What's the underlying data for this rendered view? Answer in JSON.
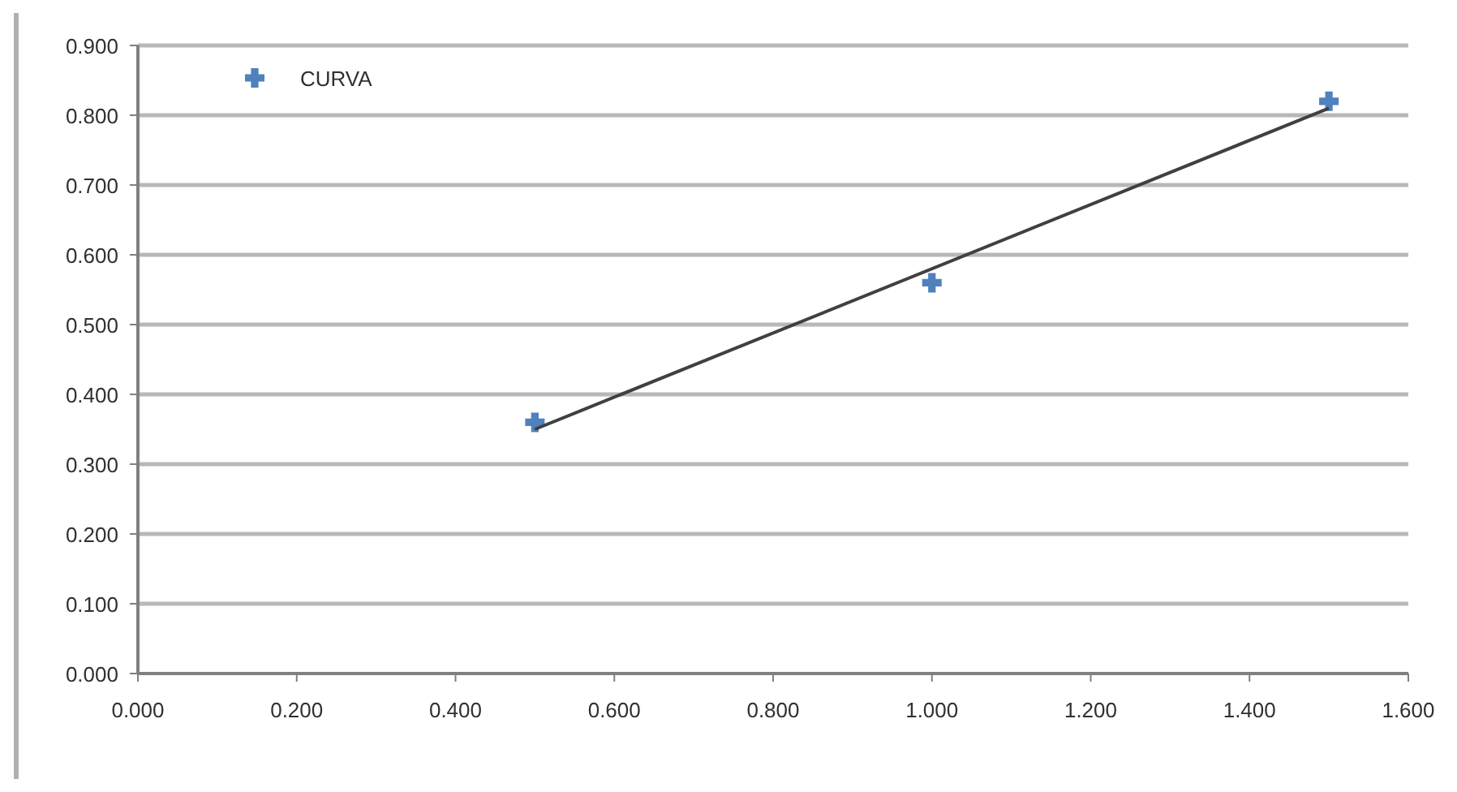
{
  "chart_data": {
    "type": "scatter",
    "series": [
      {
        "name": "CURVA",
        "color": "#4f81bd",
        "marker": "cross",
        "x": [
          0.5,
          1.0,
          1.5
        ],
        "values": [
          0.36,
          0.56,
          0.82
        ]
      },
      {
        "type": "line",
        "color": "#404040",
        "line_style": "solid",
        "marker": "none",
        "x": [
          0.5,
          1.5
        ],
        "values": [
          0.35,
          0.81
        ]
      }
    ],
    "xlim": [
      0,
      1.6
    ],
    "xticks": [
      {
        "value": 0,
        "label": "0.000"
      },
      {
        "value": 0.2,
        "label": "0.200"
      },
      {
        "value": 0.4,
        "label": "0.400"
      },
      {
        "value": 0.6,
        "label": "0.600"
      },
      {
        "value": 0.8,
        "label": "0.800"
      },
      {
        "value": 1,
        "label": "1.000"
      },
      {
        "value": 1.2,
        "label": "1.200"
      },
      {
        "value": 1.4,
        "label": "1.400"
      },
      {
        "value": 1.6,
        "label": "1.600"
      }
    ],
    "ylim": [
      0,
      0.9
    ],
    "yticks": [
      {
        "value": 0,
        "label": "0.000"
      },
      {
        "value": 0.1,
        "label": "0.100"
      },
      {
        "value": 0.2,
        "label": "0.200"
      },
      {
        "value": 0.3,
        "label": "0.300"
      },
      {
        "value": 0.4,
        "label": "0.400"
      },
      {
        "value": 0.5,
        "label": "0.500"
      },
      {
        "value": 0.6,
        "label": "0.600"
      },
      {
        "value": 0.7,
        "label": "0.700"
      },
      {
        "value": 0.8,
        "label": "0.800"
      },
      {
        "value": 0.9,
        "label": "0.900"
      }
    ],
    "grid": "y",
    "legend": "top left"
  }
}
